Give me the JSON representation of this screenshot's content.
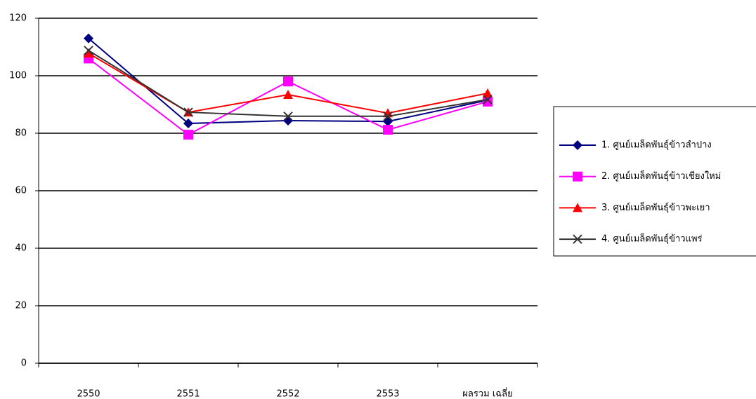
{
  "chart_data": {
    "type": "line",
    "categories": [
      "2550",
      "2551",
      "2552",
      "2553",
      "ผลรวม เฉลี่ย"
    ],
    "series": [
      {
        "name": "1.  ศูนย์เมล็ดพันธุ์ข้าวลำปาง",
        "color": "#000080",
        "marker": "diamond",
        "values": [
          113,
          83.4,
          84.4,
          84.1,
          91.5
        ]
      },
      {
        "name": "2.  ศูนย์เมล็ดพันธุ์ข้าวเชียงใหม่",
        "color": "#ff00ff",
        "marker": "square",
        "values": [
          106,
          79.5,
          98,
          81.2,
          91
        ]
      },
      {
        "name": "3.  ศูนย์เมล็ดพันธุ์ข้าวพะเยา",
        "color": "#ff0000",
        "marker": "triangle",
        "values": [
          107.8,
          87.3,
          93.4,
          87,
          93.9
        ]
      },
      {
        "name": "4.  ศูนย์เมล็ดพันธุ์ข้าวแพร่",
        "color": "#333333",
        "marker": "x",
        "values": [
          108.8,
          87.3,
          85.9,
          85.9,
          91.7
        ]
      }
    ],
    "ylim": [
      0,
      120
    ],
    "yticks": [
      0,
      20,
      40,
      60,
      80,
      100,
      120
    ],
    "grid": true,
    "legend": "right"
  }
}
